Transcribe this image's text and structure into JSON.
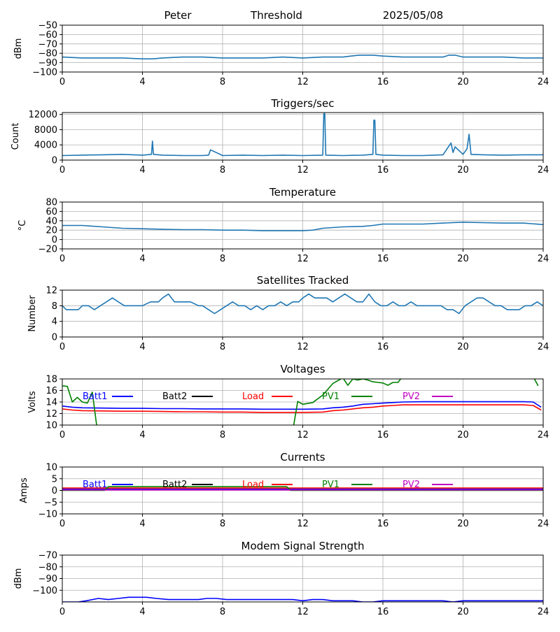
{
  "header": {
    "station": "Peter",
    "mode": "Threshold",
    "date": "2025/05/08"
  },
  "colors": {
    "default": "#1f77b4",
    "batt1": "#0000ff",
    "batt2": "#000000",
    "load": "#ff0000",
    "pv1": "#008000",
    "pv2": "#bf00bf",
    "grid": "#b0b0b0"
  },
  "chart_data": [
    {
      "id": "threshold",
      "type": "line",
      "title": "",
      "xlabel": "",
      "ylabel": "dBm",
      "xlim": [
        0,
        24
      ],
      "ylim": [
        -100,
        -50
      ],
      "xticks": [
        0,
        4,
        8,
        12,
        16,
        20,
        24
      ],
      "yticks": [
        -100,
        -90,
        -80,
        -70,
        -60,
        -50
      ],
      "yticklabels": [
        "−100",
        "−90",
        "−80",
        "−70",
        "−60",
        "−50"
      ],
      "grid": true,
      "series": [
        {
          "name": "",
          "color": "#1f77b4",
          "x": [
            0,
            1,
            2,
            3,
            4,
            4.5,
            5,
            6,
            7,
            8,
            9,
            10,
            11,
            12,
            13,
            14,
            14.8,
            15.5,
            16,
            17,
            18,
            19,
            19.3,
            19.6,
            20,
            21,
            22,
            23,
            24
          ],
          "y": [
            -84,
            -85,
            -85,
            -85,
            -86,
            -86,
            -85,
            -84,
            -84,
            -85,
            -85,
            -85,
            -84,
            -85,
            -84,
            -84,
            -82,
            -82,
            -83,
            -84,
            -84,
            -84,
            -82,
            -82,
            -84,
            -84,
            -84,
            -85,
            -85
          ]
        }
      ]
    },
    {
      "id": "triggers",
      "type": "line",
      "title": "Triggers/sec",
      "xlabel": "",
      "ylabel": "Count",
      "xlim": [
        0,
        24
      ],
      "ylim": [
        0,
        12500
      ],
      "xticks": [
        0,
        4,
        8,
        12,
        16,
        20,
        24
      ],
      "yticks": [
        0,
        4000,
        8000,
        12000
      ],
      "yticklabels": [
        "0",
        "4000",
        "8000",
        "12000"
      ],
      "grid": true,
      "series": [
        {
          "name": "",
          "color": "#1f77b4",
          "x": [
            0,
            1,
            2,
            3,
            4,
            4.45,
            4.5,
            4.55,
            5,
            6,
            7,
            7.3,
            7.4,
            8,
            9,
            10,
            11,
            12,
            13,
            13.05,
            13.1,
            13.15,
            14,
            15,
            15.5,
            15.55,
            15.6,
            15.65,
            16,
            17,
            18,
            19,
            19.4,
            19.5,
            19.6,
            20,
            20.2,
            20.3,
            20.4,
            21,
            22,
            23,
            24
          ],
          "y": [
            1200,
            1300,
            1400,
            1500,
            1300,
            1500,
            5000,
            1500,
            1300,
            1200,
            1200,
            1300,
            2700,
            1200,
            1300,
            1200,
            1300,
            1200,
            1300,
            12200,
            12200,
            1300,
            1200,
            1300,
            1500,
            10500,
            10500,
            1500,
            1300,
            1200,
            1200,
            1400,
            4500,
            2000,
            3500,
            1500,
            3000,
            6800,
            1500,
            1400,
            1300,
            1400,
            1400
          ]
        }
      ]
    },
    {
      "id": "temperature",
      "type": "line",
      "title": "Temperature",
      "xlabel": "",
      "ylabel": "°C",
      "xlim": [
        0,
        24
      ],
      "ylim": [
        -20,
        80
      ],
      "xticks": [
        0,
        4,
        8,
        12,
        16,
        20,
        24
      ],
      "yticks": [
        -20,
        0,
        20,
        40,
        60,
        80
      ],
      "yticklabels": [
        "−20",
        "0",
        "20",
        "40",
        "60",
        "80"
      ],
      "grid": true,
      "series": [
        {
          "name": "",
          "color": "#1f77b4",
          "x": [
            0,
            1,
            2,
            3,
            4,
            5,
            6,
            7,
            8,
            9,
            10,
            11,
            12,
            12.5,
            13,
            14,
            15,
            15.5,
            16,
            17,
            18,
            19,
            20,
            21,
            22,
            23,
            24
          ],
          "y": [
            30,
            30,
            27,
            24,
            23,
            22,
            21,
            21,
            20,
            20,
            19,
            19,
            19,
            20,
            24,
            27,
            28,
            30,
            33,
            33,
            33,
            35,
            37,
            36,
            35,
            35,
            32
          ]
        }
      ]
    },
    {
      "id": "satellites",
      "type": "line",
      "title": "Satellites Tracked",
      "xlabel": "",
      "ylabel": "Number",
      "xlim": [
        0,
        24
      ],
      "ylim": [
        0,
        12
      ],
      "xticks": [
        0,
        4,
        8,
        12,
        16,
        20,
        24
      ],
      "yticks": [
        0,
        4,
        8,
        12
      ],
      "yticklabels": [
        "0",
        "4",
        "8",
        "12"
      ],
      "grid": true,
      "series": [
        {
          "name": "",
          "color": "#1f77b4",
          "x": [
            0,
            0.2,
            0.5,
            0.8,
            1,
            1.3,
            1.6,
            1.9,
            2.2,
            2.5,
            2.8,
            3.1,
            3.4,
            3.7,
            4,
            4.4,
            4.8,
            5.0,
            5.3,
            5.6,
            6,
            6.4,
            6.8,
            7.0,
            7.3,
            7.6,
            7.9,
            8.2,
            8.5,
            8.8,
            9.1,
            9.4,
            9.7,
            10,
            10.3,
            10.6,
            10.9,
            11.2,
            11.5,
            11.8,
            12,
            12.3,
            12.6,
            12.9,
            13.2,
            13.5,
            13.8,
            14.1,
            14.4,
            14.7,
            15,
            15.3,
            15.6,
            15.9,
            16.2,
            16.5,
            16.8,
            17.1,
            17.4,
            17.7,
            18,
            18.3,
            18.6,
            18.9,
            19.2,
            19.5,
            19.8,
            20.1,
            20.4,
            20.7,
            21,
            21.3,
            21.6,
            21.9,
            22.2,
            22.5,
            22.8,
            23.1,
            23.4,
            23.7,
            24
          ],
          "y": [
            8,
            7,
            7,
            7,
            8,
            8,
            7,
            8,
            9,
            10,
            9,
            8,
            8,
            8,
            8,
            9,
            9,
            10,
            11,
            9,
            9,
            9,
            8,
            8,
            7,
            6,
            7,
            8,
            9,
            8,
            8,
            7,
            8,
            7,
            8,
            8,
            9,
            8,
            9,
            9,
            10,
            11,
            10,
            10,
            10,
            9,
            10,
            11,
            10,
            9,
            9,
            11,
            9,
            8,
            8,
            9,
            8,
            8,
            9,
            8,
            8,
            8,
            8,
            8,
            7,
            7,
            6,
            8,
            9,
            10,
            10,
            9,
            8,
            8,
            7,
            7,
            7,
            8,
            8,
            9,
            8
          ]
        }
      ]
    },
    {
      "id": "voltages",
      "type": "line",
      "title": "Voltages",
      "xlabel": "",
      "ylabel": "Volts",
      "xlim": [
        0,
        24
      ],
      "ylim": [
        10,
        18
      ],
      "xticks": [
        0,
        4,
        8,
        12,
        16,
        20,
        24
      ],
      "yticks": [
        10,
        12,
        14,
        16,
        18
      ],
      "yticklabels": [
        "10",
        "12",
        "14",
        "16",
        "18"
      ],
      "grid": true,
      "legend": "top",
      "series": [
        {
          "name": "Batt1",
          "color": "#0000ff",
          "x": [
            0,
            0.5,
            1,
            2,
            3,
            4,
            5,
            6,
            7,
            8,
            9,
            10,
            11,
            12,
            13,
            13.5,
            14,
            14.5,
            15,
            15.5,
            16,
            16.5,
            17,
            18,
            19,
            20,
            21,
            22,
            23,
            23.5,
            23.9
          ],
          "y": [
            13.3,
            13.1,
            13.0,
            12.95,
            12.9,
            12.9,
            12.85,
            12.85,
            12.8,
            12.8,
            12.8,
            12.75,
            12.75,
            12.75,
            12.8,
            13.0,
            13.1,
            13.3,
            13.6,
            13.7,
            13.8,
            13.9,
            14.0,
            14.05,
            14.05,
            14.05,
            14.05,
            14.05,
            14.05,
            14.0,
            13.1
          ]
        },
        {
          "name": "Load",
          "color": "#ff0000",
          "x": [
            0,
            0.5,
            1,
            2,
            3,
            4,
            5,
            6,
            7,
            8,
            9,
            10,
            11,
            12,
            13,
            13.5,
            14,
            14.5,
            15,
            15.5,
            16,
            16.5,
            17,
            18,
            19,
            20,
            21,
            22,
            23,
            23.5,
            23.9
          ],
          "y": [
            12.8,
            12.6,
            12.5,
            12.45,
            12.4,
            12.4,
            12.35,
            12.3,
            12.3,
            12.25,
            12.25,
            12.2,
            12.2,
            12.2,
            12.25,
            12.5,
            12.6,
            12.8,
            13.0,
            13.1,
            13.3,
            13.4,
            13.5,
            13.5,
            13.5,
            13.5,
            13.5,
            13.5,
            13.5,
            13.4,
            12.6
          ]
        },
        {
          "name": "Batt2",
          "color": "#000000",
          "x": [],
          "y": []
        },
        {
          "name": "PV1",
          "color": "#008000",
          "x": [
            0,
            0.25,
            0.5,
            0.75,
            1,
            1.25,
            1.5,
            1.75,
            2,
            11,
            11.5,
            11.75,
            12,
            12.5,
            13,
            13.25,
            13.5,
            13.75,
            14,
            14.25,
            14.5,
            14.75,
            15,
            15.25,
            15.5,
            15.75,
            16,
            16.25,
            16.5,
            16.75,
            17,
            17.5,
            23,
            23.5,
            23.75
          ],
          "y": [
            16.8,
            16.7,
            14.0,
            14.8,
            14.0,
            13.8,
            15.7,
            9.0,
            9.0,
            9.0,
            9.0,
            14.1,
            13.6,
            13.9,
            15.2,
            16.2,
            17.2,
            17.7,
            18.2,
            16.9,
            18.0,
            17.8,
            18.0,
            17.8,
            17.5,
            17.4,
            17.3,
            16.9,
            17.4,
            17.4,
            18.5,
            19.0,
            19.0,
            18.4,
            16.8
          ]
        },
        {
          "name": "PV2",
          "color": "#bf00bf",
          "x": [],
          "y": []
        }
      ]
    },
    {
      "id": "currents",
      "type": "line",
      "title": "Currents",
      "xlabel": "",
      "ylabel": "Amps",
      "xlim": [
        0,
        24
      ],
      "ylim": [
        -10,
        10
      ],
      "xticks": [
        0,
        4,
        8,
        12,
        16,
        20,
        24
      ],
      "yticks": [
        -10,
        -5,
        0,
        5,
        10
      ],
      "yticklabels": [
        "−10",
        "−5",
        "0",
        "5",
        "10"
      ],
      "grid": true,
      "legend": "top",
      "series": [
        {
          "name": "Batt1",
          "color": "#0000ff",
          "x": [
            0,
            24
          ],
          "y": [
            0.5,
            0.5
          ]
        },
        {
          "name": "Load",
          "color": "#ff0000",
          "x": [
            0,
            4,
            8,
            12,
            16,
            20,
            24
          ],
          "y": [
            1.0,
            1.0,
            1.0,
            1.0,
            1.0,
            1.0,
            1.0
          ]
        },
        {
          "name": "Batt2",
          "color": "#000000",
          "x": [],
          "y": []
        },
        {
          "name": "PV1",
          "color": "#008000",
          "x": [
            0,
            2.1,
            2.3,
            11.2,
            11.4,
            24
          ],
          "y": [
            0,
            0,
            1.6,
            1.6,
            0,
            0
          ]
        },
        {
          "name": "PV2",
          "color": "#bf00bf",
          "x": [
            0,
            24
          ],
          "y": [
            0.2,
            0.2
          ]
        }
      ]
    },
    {
      "id": "modem",
      "type": "line",
      "title": "Modem Signal Strength",
      "xlabel": "",
      "ylabel": "dBm",
      "xlim": [
        0,
        24
      ],
      "ylim": [
        -110,
        -70
      ],
      "xticks": [
        0,
        4,
        8,
        12,
        16,
        20,
        24
      ],
      "yticks": [
        -100,
        -90,
        -80,
        -70
      ],
      "yticklabels": [
        "−100",
        "−90",
        "−80",
        "−70"
      ],
      "grid": true,
      "series": [
        {
          "name": "",
          "color": "#0000ff",
          "x": [
            0,
            0.2,
            0.8,
            1.2,
            1.8,
            2.3,
            2.8,
            3.3,
            4.2,
            4.7,
            5.3,
            6.0,
            6.8,
            7.2,
            7.7,
            8.2,
            9.0,
            10.0,
            11.0,
            11.5,
            12.0,
            12.5,
            13.0,
            13.5,
            14.5,
            15.0,
            15.5,
            16.0,
            17.0,
            18.0,
            19.0,
            19.5,
            20.0,
            20.5,
            21.5,
            22.2,
            22.6,
            23.2,
            24
          ],
          "y": [
            -110,
            -110,
            -110,
            -109,
            -107,
            -108,
            -107,
            -106,
            -106,
            -107,
            -108,
            -108,
            -108,
            -107,
            -107,
            -108,
            -108,
            -108,
            -108,
            -108,
            -109,
            -108,
            -108,
            -109,
            -109,
            -110,
            -110,
            -109,
            -109,
            -109,
            -109,
            -110,
            -109,
            -109,
            -109,
            -109,
            -109,
            -109,
            -109
          ]
        }
      ]
    }
  ]
}
